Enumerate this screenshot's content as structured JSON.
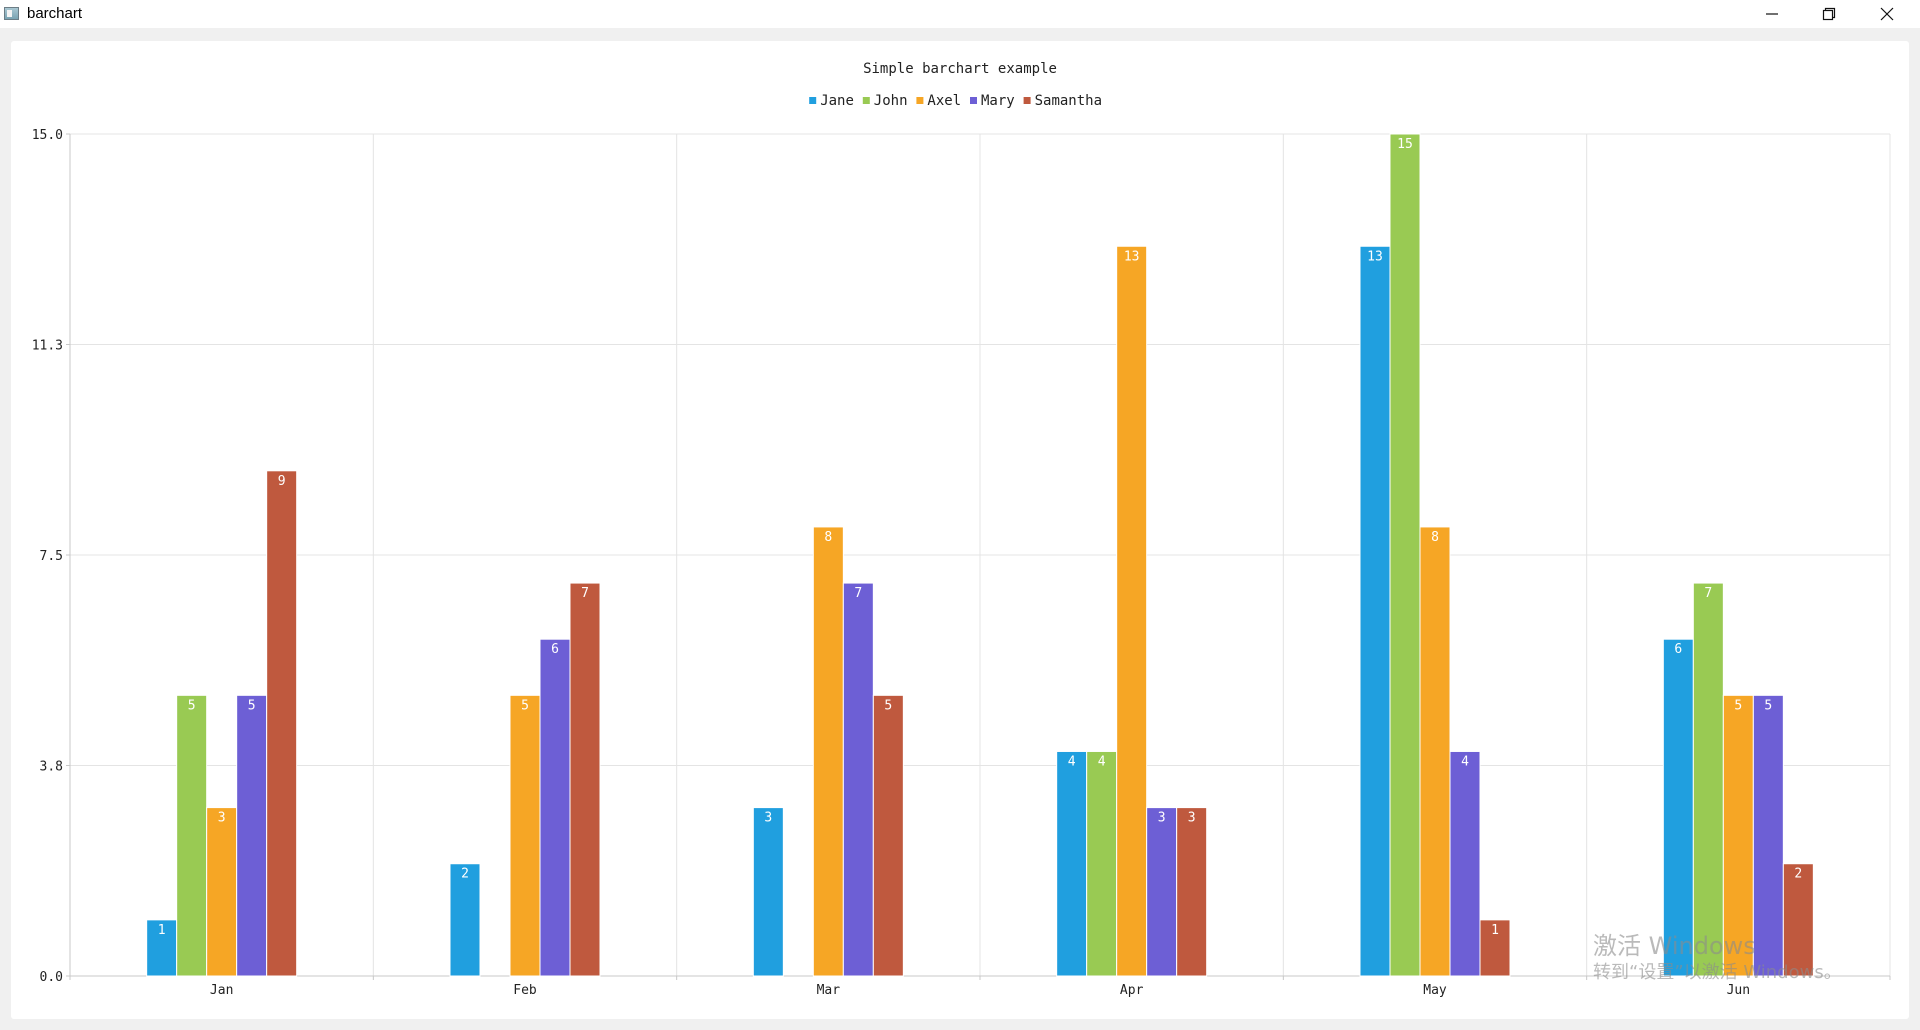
{
  "window": {
    "title": "barchart",
    "buttons": {
      "minimize_icon": "minimize-icon",
      "restore_icon": "restore-icon",
      "close_icon": "close-icon"
    }
  },
  "chart_data": {
    "type": "bar",
    "title": "Simple barchart example",
    "xlabel": "",
    "ylabel": "",
    "categories": [
      "Jan",
      "Feb",
      "Mar",
      "Apr",
      "May",
      "Jun"
    ],
    "series": [
      {
        "name": "Jane",
        "color": "#209fdf",
        "values": [
          1,
          2,
          3,
          4,
          13,
          6
        ]
      },
      {
        "name": "John",
        "color": "#99ca53",
        "values": [
          5,
          0,
          0,
          4,
          15,
          7
        ]
      },
      {
        "name": "Axel",
        "color": "#f6a625",
        "values": [
          3,
          5,
          8,
          13,
          8,
          5
        ]
      },
      {
        "name": "Mary",
        "color": "#6d5fd5",
        "values": [
          5,
          6,
          7,
          3,
          4,
          5
        ]
      },
      {
        "name": "Samantha",
        "color": "#bf593e",
        "values": [
          9,
          7,
          5,
          3,
          1,
          2
        ]
      }
    ],
    "ylim": [
      0,
      15
    ],
    "yticks": [
      "0.0",
      "3.8",
      "7.5",
      "11.3",
      "15.0"
    ],
    "grid": true,
    "legend": "top-center"
  },
  "watermark": {
    "line1": "激活 Windows",
    "line2": "转到“设置”以激活 Windows。"
  }
}
